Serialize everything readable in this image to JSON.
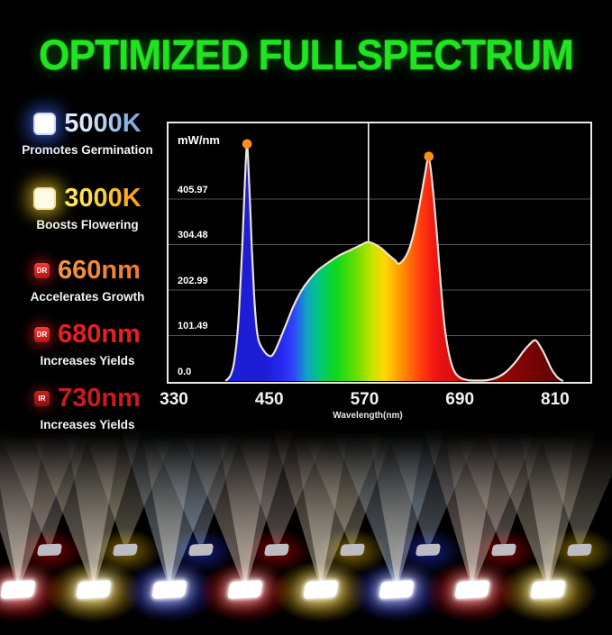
{
  "title": "OPTIMIZED FULLSPECTRUM",
  "title_color": "#1fe41f",
  "legend": {
    "items": [
      {
        "label": "5000K",
        "desc": "Promotes Germination",
        "badge": "",
        "glow_color": "#3e68fa"
      },
      {
        "label": "3000K",
        "desc": "Boosts Flowering",
        "badge": "",
        "glow_color": "#fad428"
      },
      {
        "label": "660nm",
        "desc": "Accelerates Growth",
        "badge": "DR",
        "text_color": "#ee7b28"
      },
      {
        "label": "680nm",
        "desc": "Increases Yields",
        "badge": "DR",
        "text_color": "#e81f1f"
      },
      {
        "label": "730nm",
        "desc": "Increases Yields",
        "badge": "IR",
        "text_color": "#cf1a1a"
      }
    ]
  },
  "chart_data": {
    "type": "area",
    "title": "",
    "xlabel": "Wavelength(nm)",
    "ylabel": "mW/nm",
    "x_ticks": [
      330,
      450,
      570,
      690,
      810
    ],
    "y_ticks": {
      "labels": [
        "405.97",
        "304.48",
        "202.99",
        "101.49",
        "0.0"
      ],
      "values": [
        405.97,
        304.48,
        202.99,
        101.49,
        0
      ]
    },
    "xlim": [
      323,
      854
    ],
    "ylim": [
      0,
      575
    ],
    "grid": true,
    "vline": {
      "x": 575,
      "top_value": 312
    },
    "markers": [
      {
        "x": 422,
        "y": 525
      },
      {
        "x": 651,
        "y": 497
      }
    ],
    "series": [
      {
        "name": "spectral power distribution",
        "points": [
          [
            395,
            0
          ],
          [
            401,
            12
          ],
          [
            406,
            45
          ],
          [
            411,
            130
          ],
          [
            416,
            300
          ],
          [
            419,
            430
          ],
          [
            422,
            525
          ],
          [
            425,
            430
          ],
          [
            428,
            300
          ],
          [
            431,
            190
          ],
          [
            434,
            120
          ],
          [
            437,
            88
          ],
          [
            443,
            68
          ],
          [
            448,
            58
          ],
          [
            453,
            56
          ],
          [
            458,
            70
          ],
          [
            464,
            95
          ],
          [
            472,
            130
          ],
          [
            480,
            165
          ],
          [
            490,
            200
          ],
          [
            500,
            225
          ],
          [
            512,
            248
          ],
          [
            525,
            265
          ],
          [
            538,
            280
          ],
          [
            552,
            292
          ],
          [
            565,
            303
          ],
          [
            575,
            310
          ],
          [
            588,
            300
          ],
          [
            600,
            282
          ],
          [
            608,
            270
          ],
          [
            614,
            262
          ],
          [
            624,
            285
          ],
          [
            632,
            330
          ],
          [
            640,
            400
          ],
          [
            646,
            460
          ],
          [
            651,
            497
          ],
          [
            656,
            430
          ],
          [
            661,
            330
          ],
          [
            666,
            215
          ],
          [
            671,
            120
          ],
          [
            677,
            55
          ],
          [
            683,
            22
          ],
          [
            690,
            8
          ],
          [
            700,
            2
          ],
          [
            712,
            1
          ],
          [
            725,
            2
          ],
          [
            737,
            8
          ],
          [
            748,
            20
          ],
          [
            760,
            42
          ],
          [
            770,
            66
          ],
          [
            778,
            82
          ],
          [
            785,
            91
          ],
          [
            791,
            78
          ],
          [
            798,
            55
          ],
          [
            805,
            28
          ],
          [
            812,
            10
          ],
          [
            816,
            4
          ],
          [
            820,
            0
          ]
        ]
      }
    ],
    "marker_color": "#ff8e1f",
    "line_color": "#ece3d7",
    "grid_color": "#4f4f4f",
    "fill_gradient": [
      [
        "0%",
        "#1d1dd6"
      ],
      [
        "12%",
        "#1d1dd6"
      ],
      [
        "17.1%",
        "#2a2af2"
      ],
      [
        "20.3%",
        "#2d49fa"
      ],
      [
        "24.1%",
        "#11a3c4"
      ],
      [
        "27.8%",
        "#00c87d"
      ],
      [
        "32.5%",
        "#0ad81e"
      ],
      [
        "38.5%",
        "#66dd00"
      ],
      [
        "43.4%",
        "#c6e400"
      ],
      [
        "47.2%",
        "#ffd800"
      ],
      [
        "50.4%",
        "#ffaa00"
      ],
      [
        "54.3%",
        "#ff7208"
      ],
      [
        "58.1%",
        "#ff3a0c"
      ],
      [
        "62.2%",
        "#ef1414"
      ],
      [
        "68.4%",
        "#d40d0d"
      ],
      [
        "76.5%",
        "#a90808"
      ],
      [
        "85.5%",
        "#880505"
      ],
      [
        "93%",
        "#6f0404"
      ],
      [
        "100%",
        "#5a0303"
      ]
    ]
  },
  "lights": {
    "front_row": {
      "chip_color": "#ffffff",
      "glows": [
        "#d90000",
        "#e6b400",
        "#2434df",
        "#d90000",
        "#e6b400",
        "#2434df",
        "#d90000",
        "#e6b400"
      ],
      "beams": [
        "#d7c0b2",
        "#d8cab0",
        "#b4c6d8",
        "#d7c0b2",
        "#d8cab0",
        "#b4c6d8",
        "#d7c0b2",
        "#d8cab0"
      ]
    },
    "back_row": {
      "chip_color": "#bcbcc2",
      "glows": [
        "#d90000",
        "#e6b400",
        "#2434df",
        "#d90000",
        "#e6b400",
        "#2434df",
        "#d90000",
        "#e6b400"
      ],
      "beams": [
        "#cdbcb0",
        "#cfc4aa",
        "#aebfd2",
        "#cdbcb0",
        "#cfc4aa",
        "#aebfd2",
        "#cdbcb0",
        "#cfc4aa"
      ]
    }
  }
}
